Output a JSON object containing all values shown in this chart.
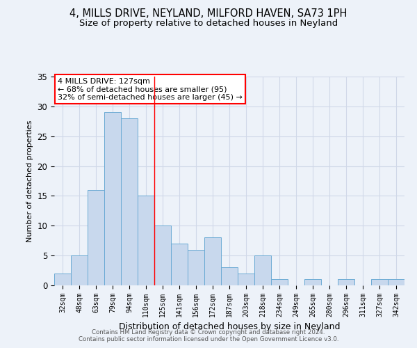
{
  "title1": "4, MILLS DRIVE, NEYLAND, MILFORD HAVEN, SA73 1PH",
  "title2": "Size of property relative to detached houses in Neyland",
  "xlabel": "Distribution of detached houses by size in Neyland",
  "ylabel": "Number of detached properties",
  "categories": [
    "32sqm",
    "48sqm",
    "63sqm",
    "79sqm",
    "94sqm",
    "110sqm",
    "125sqm",
    "141sqm",
    "156sqm",
    "172sqm",
    "187sqm",
    "203sqm",
    "218sqm",
    "234sqm",
    "249sqm",
    "265sqm",
    "280sqm",
    "296sqm",
    "311sqm",
    "327sqm",
    "342sqm"
  ],
  "values": [
    2,
    5,
    16,
    29,
    28,
    15,
    10,
    7,
    6,
    8,
    3,
    2,
    5,
    1,
    0,
    1,
    0,
    1,
    0,
    1,
    1
  ],
  "bar_color": "#c8d8ed",
  "bar_edge_color": "#6aaad4",
  "annotation_box_text": "4 MILLS DRIVE: 127sqm\n← 68% of detached houses are smaller (95)\n32% of semi-detached houses are larger (45) →",
  "annotation_box_color": "white",
  "annotation_box_edge_color": "red",
  "vline_color": "red",
  "vline_x_index": 6,
  "ylim": [
    0,
    35
  ],
  "yticks": [
    0,
    5,
    10,
    15,
    20,
    25,
    30,
    35
  ],
  "footer1": "Contains HM Land Registry data © Crown copyright and database right 2024.",
  "footer2": "Contains public sector information licensed under the Open Government Licence v3.0.",
  "background_color": "#edf2f9",
  "grid_color": "#d0d8e8"
}
